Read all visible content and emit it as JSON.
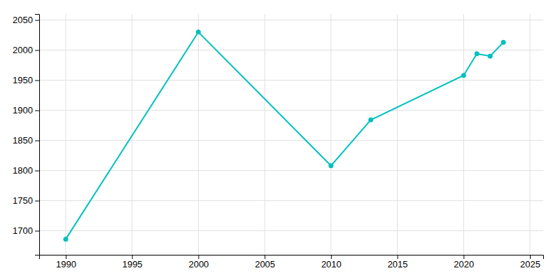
{
  "chart_data": {
    "type": "line",
    "x": [
      1990,
      2000,
      2010,
      2013,
      2020,
      2021,
      2022,
      2023
    ],
    "values": [
      1686,
      2030,
      1808,
      1884,
      1958,
      1994,
      1990,
      2013
    ],
    "color": "#00c0c0",
    "marker": "circle",
    "xlim": [
      1988,
      2026
    ],
    "ylim": [
      1660,
      2060
    ],
    "xticks": [
      1990,
      1995,
      2000,
      2005,
      2010,
      2015,
      2020,
      2025
    ],
    "yticks": [
      1700,
      1750,
      1800,
      1850,
      1900,
      1950,
      2000,
      2050
    ],
    "grid": true
  }
}
